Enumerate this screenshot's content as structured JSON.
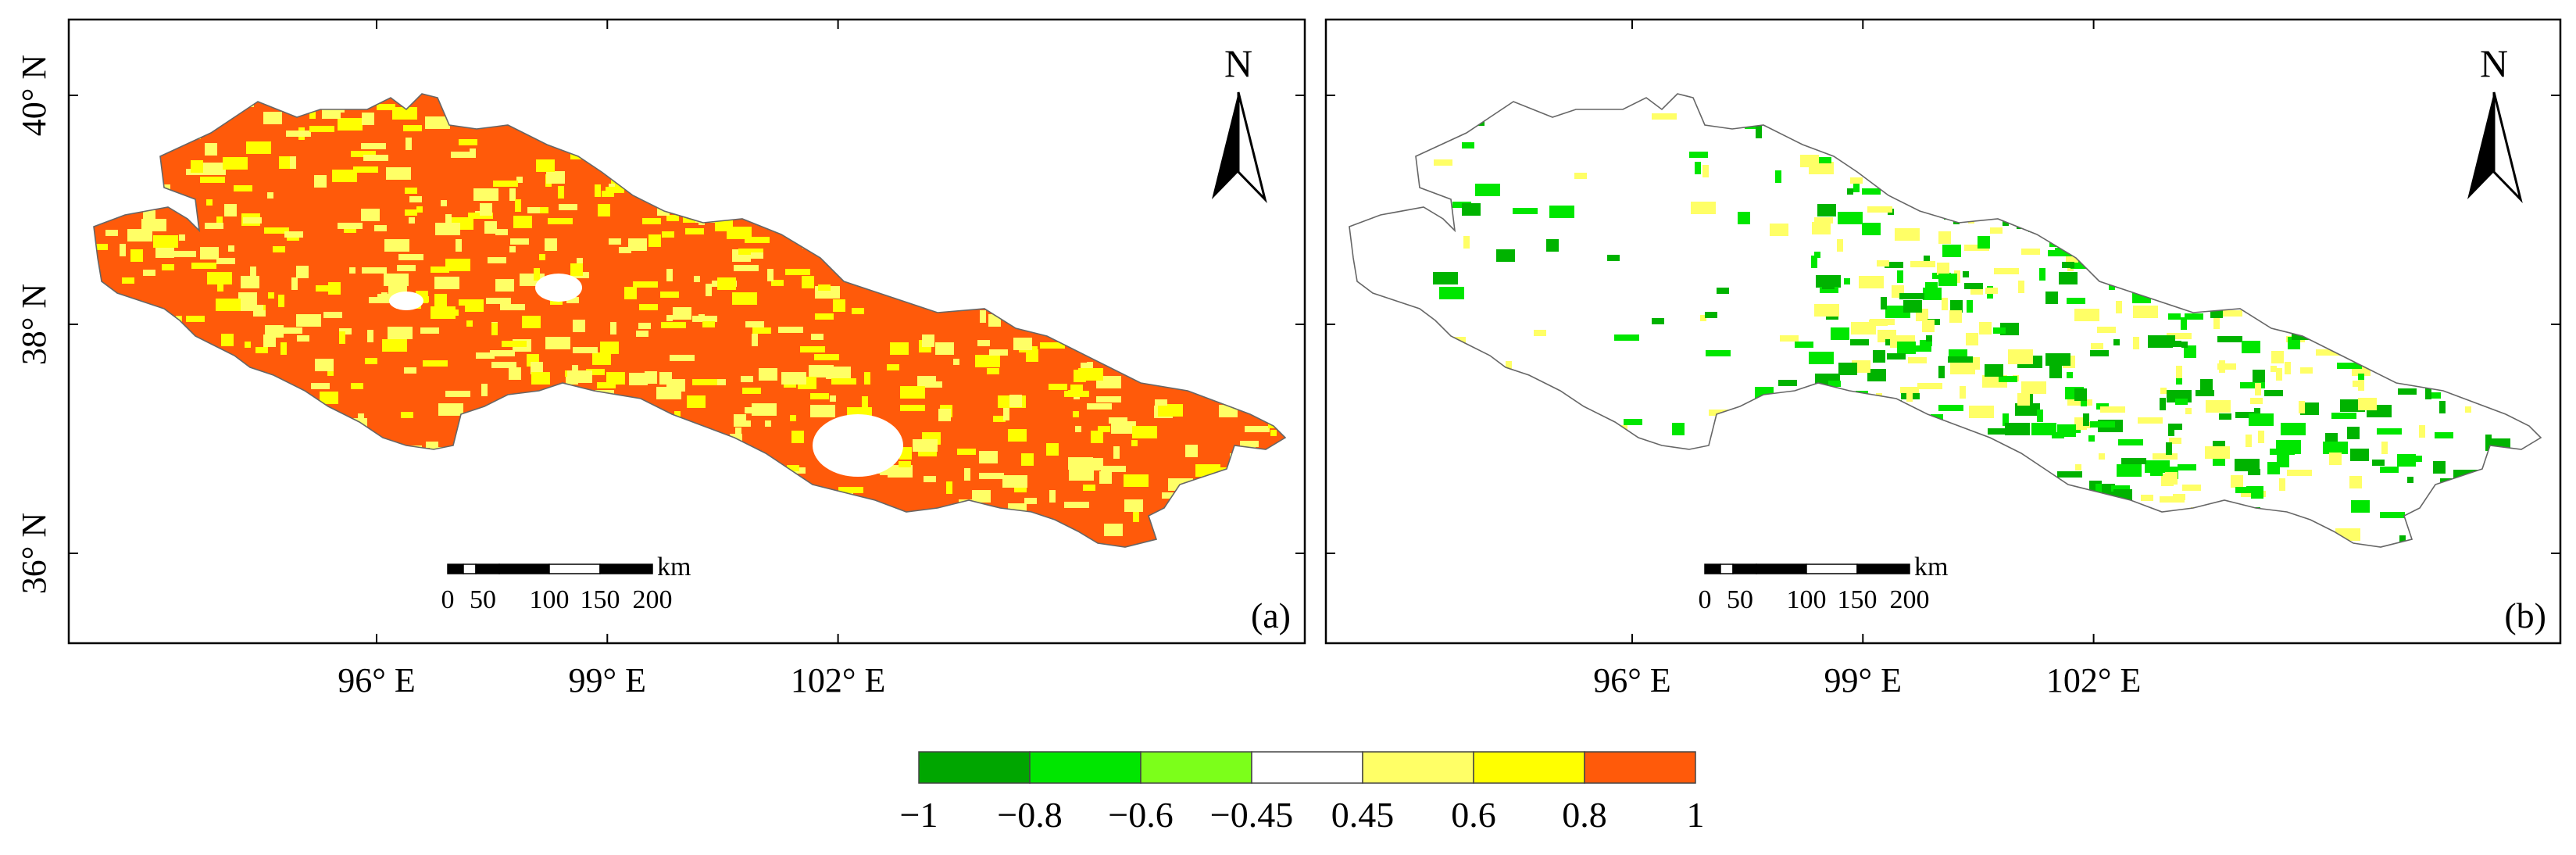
{
  "panels": [
    {
      "id": "a",
      "label": "(a)",
      "north": "N",
      "scale": {
        "unit": "km",
        "ticks": [
          "0",
          "50",
          "100",
          "150",
          "200"
        ]
      },
      "fill_color": "#ff5a0a",
      "patch_colors": [
        "#ffff00",
        "#ffff66"
      ],
      "holes": 3
    },
    {
      "id": "b",
      "label": "(b)",
      "north": "N",
      "scale": {
        "unit": "km",
        "ticks": [
          "0",
          "50",
          "100",
          "150",
          "200"
        ]
      },
      "fill_color": "#ffffff",
      "patch_colors": [
        "#00e600",
        "#00b300",
        "#ffff66"
      ],
      "holes": 0
    }
  ],
  "y_axis": {
    "ticks": [
      "36° N",
      "38° N",
      "40° N"
    ],
    "values": [
      36,
      38,
      40
    ]
  },
  "x_axis": {
    "ticks": [
      "96° E",
      "99° E",
      "102° E"
    ],
    "values": [
      96,
      99,
      102
    ]
  },
  "legend": {
    "tick_labels": [
      "−1",
      "−0.8",
      "−0.6",
      "−0.45",
      "0.45",
      "0.6",
      "0.8",
      "1"
    ],
    "bins": [
      {
        "from": -1,
        "to": -0.8,
        "color": "#00a600"
      },
      {
        "from": -0.8,
        "to": -0.6,
        "color": "#00e600"
      },
      {
        "from": -0.6,
        "to": -0.45,
        "color": "#7cff1a"
      },
      {
        "from": -0.45,
        "to": 0.45,
        "color": "#ffffff"
      },
      {
        "from": 0.45,
        "to": 0.6,
        "color": "#ffff66"
      },
      {
        "from": 0.6,
        "to": 0.8,
        "color": "#ffff00"
      },
      {
        "from": 0.8,
        "to": 1,
        "color": "#ff5a0a"
      }
    ]
  }
}
